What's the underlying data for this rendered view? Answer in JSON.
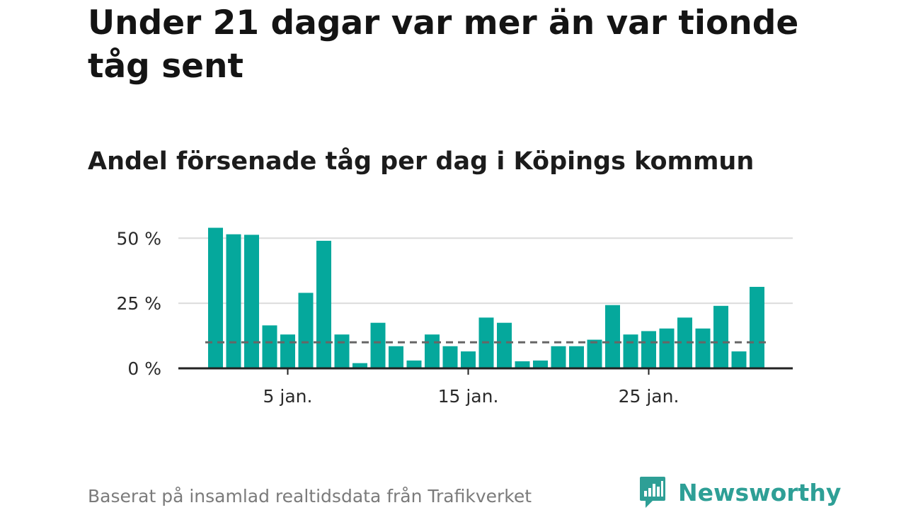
{
  "title": "Under 21 dagar var mer än var tionde tåg sent",
  "subtitle": "Andel försenade tåg per dag i Köpings kommun",
  "footer": {
    "source": "Baserat på insamlad realtidsdata från Trafikverket",
    "brand": "Newsworthy",
    "brand_icon": "newsworthy-logo-icon"
  },
  "colors": {
    "bar": "#05a89c",
    "reference": "#666666",
    "axis": "#222222",
    "grid": "#dcdcdc",
    "brand": "#2e9f96"
  },
  "chart_data": {
    "type": "bar",
    "x": [
      1,
      2,
      3,
      4,
      5,
      6,
      7,
      8,
      9,
      10,
      11,
      12,
      13,
      14,
      15,
      16,
      17,
      18,
      19,
      20,
      21,
      22,
      23,
      24,
      25,
      26,
      27,
      28,
      29,
      30,
      31
    ],
    "values": [
      54,
      51.5,
      51.3,
      16.5,
      13,
      29,
      49,
      13,
      2,
      17.5,
      8.5,
      3,
      13,
      8.5,
      6.5,
      19.5,
      17.5,
      2.7,
      3,
      8.5,
      8.5,
      11,
      24.3,
      13,
      14.3,
      15.3,
      19.5,
      15.3,
      24,
      6.5,
      31.3
    ],
    "reference_line": 10,
    "reference_style": "dashed",
    "yticks": [
      0,
      25,
      50
    ],
    "ytick_labels": [
      "0 %",
      "25 %",
      "50 %"
    ],
    "xticks": [
      5,
      15,
      25
    ],
    "xtick_labels": [
      "5 jan.",
      "15 jan.",
      "25 jan."
    ],
    "ylim": [
      0,
      55
    ],
    "grid": true
  }
}
